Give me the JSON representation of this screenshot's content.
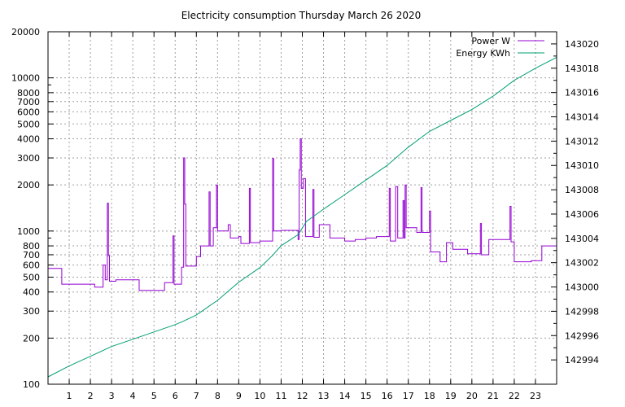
{
  "chart_data": {
    "type": "line",
    "title": "Electricity consumption Thursday March 26 2020",
    "xlabel": "",
    "ylabel": "",
    "xlim": [
      0,
      24
    ],
    "x_ticks": [
      1,
      2,
      3,
      4,
      5,
      6,
      7,
      8,
      9,
      10,
      11,
      12,
      13,
      14,
      15,
      16,
      17,
      18,
      19,
      20,
      21,
      22,
      23
    ],
    "y_scale": "log",
    "ylim": [
      100,
      20000
    ],
    "y_ticks": [
      100,
      200,
      300,
      400,
      500,
      600,
      700,
      800,
      1000,
      2000,
      3000,
      4000,
      5000,
      6000,
      7000,
      8000,
      10000,
      20000
    ],
    "y2_scale": "linear",
    "y2lim": [
      142992,
      143021
    ],
    "y2_ticks": [
      142994,
      142996,
      142998,
      143000,
      143002,
      143004,
      143006,
      143008,
      143010,
      143012,
      143014,
      143016,
      143018,
      143020
    ],
    "grid": true,
    "legend_position": "top-right",
    "series": [
      {
        "name": "Power W",
        "axis": "left",
        "color": "#9400d3",
        "step": true,
        "points": [
          [
            0.0,
            570
          ],
          [
            0.65,
            450
          ],
          [
            2.2,
            430
          ],
          [
            2.6,
            600
          ],
          [
            2.7,
            480
          ],
          [
            2.8,
            1520
          ],
          [
            2.85,
            690
          ],
          [
            2.9,
            470
          ],
          [
            3.2,
            480
          ],
          [
            4.3,
            410
          ],
          [
            5.5,
            460
          ],
          [
            5.9,
            930
          ],
          [
            5.95,
            450
          ],
          [
            6.3,
            580
          ],
          [
            6.4,
            3000
          ],
          [
            6.45,
            1500
          ],
          [
            6.5,
            590
          ],
          [
            7.0,
            680
          ],
          [
            7.2,
            800
          ],
          [
            7.6,
            1800
          ],
          [
            7.65,
            800
          ],
          [
            7.8,
            1050
          ],
          [
            7.95,
            2000
          ],
          [
            8.0,
            1000
          ],
          [
            8.5,
            1100
          ],
          [
            8.6,
            900
          ],
          [
            9.0,
            920
          ],
          [
            9.1,
            830
          ],
          [
            9.5,
            1900
          ],
          [
            9.55,
            840
          ],
          [
            10.0,
            860
          ],
          [
            10.6,
            2980
          ],
          [
            10.65,
            1000
          ],
          [
            11.0,
            1010
          ],
          [
            11.8,
            880
          ],
          [
            11.85,
            2500
          ],
          [
            11.9,
            4000
          ],
          [
            11.95,
            1900
          ],
          [
            12.05,
            2200
          ],
          [
            12.15,
            920
          ],
          [
            12.5,
            1870
          ],
          [
            12.55,
            910
          ],
          [
            12.8,
            1100
          ],
          [
            13.3,
            900
          ],
          [
            14.0,
            860
          ],
          [
            14.5,
            880
          ],
          [
            15.0,
            900
          ],
          [
            15.5,
            920
          ],
          [
            16.1,
            1900
          ],
          [
            16.15,
            860
          ],
          [
            16.4,
            1950
          ],
          [
            16.5,
            900
          ],
          [
            16.75,
            1580
          ],
          [
            16.8,
            900
          ],
          [
            16.85,
            2000
          ],
          [
            16.9,
            1050
          ],
          [
            17.4,
            980
          ],
          [
            17.6,
            1920
          ],
          [
            17.65,
            980
          ],
          [
            18.0,
            1350
          ],
          [
            18.05,
            730
          ],
          [
            18.5,
            630
          ],
          [
            18.8,
            840
          ],
          [
            19.1,
            760
          ],
          [
            19.8,
            710
          ],
          [
            20.4,
            1120
          ],
          [
            20.45,
            700
          ],
          [
            20.8,
            880
          ],
          [
            21.8,
            1450
          ],
          [
            21.85,
            850
          ],
          [
            22.0,
            630
          ],
          [
            22.8,
            640
          ],
          [
            23.3,
            800
          ],
          [
            24.0,
            800
          ]
        ]
      },
      {
        "name": "Energy KWh",
        "axis": "right",
        "color": "#009e73",
        "step": false,
        "points": [
          [
            0.0,
            142992.6
          ],
          [
            1.0,
            142993.5
          ],
          [
            2.0,
            142994.3
          ],
          [
            3.0,
            142995.1
          ],
          [
            4.0,
            142995.7
          ],
          [
            5.0,
            142996.3
          ],
          [
            6.0,
            142996.9
          ],
          [
            6.4,
            142997.2
          ],
          [
            7.0,
            142997.7
          ],
          [
            8.0,
            142998.9
          ],
          [
            9.0,
            143000.4
          ],
          [
            10.0,
            143001.6
          ],
          [
            10.6,
            143002.6
          ],
          [
            11.0,
            143003.4
          ],
          [
            11.8,
            143004.3
          ],
          [
            12.2,
            143005.4
          ],
          [
            13.0,
            143006.4
          ],
          [
            14.0,
            143007.6
          ],
          [
            15.0,
            143008.8
          ],
          [
            16.0,
            143010.0
          ],
          [
            17.0,
            143011.5
          ],
          [
            18.0,
            143012.8
          ],
          [
            19.0,
            143013.7
          ],
          [
            20.0,
            143014.6
          ],
          [
            21.0,
            143015.7
          ],
          [
            22.0,
            143017.0
          ],
          [
            23.0,
            143018.0
          ],
          [
            24.0,
            143018.9
          ]
        ]
      }
    ]
  }
}
